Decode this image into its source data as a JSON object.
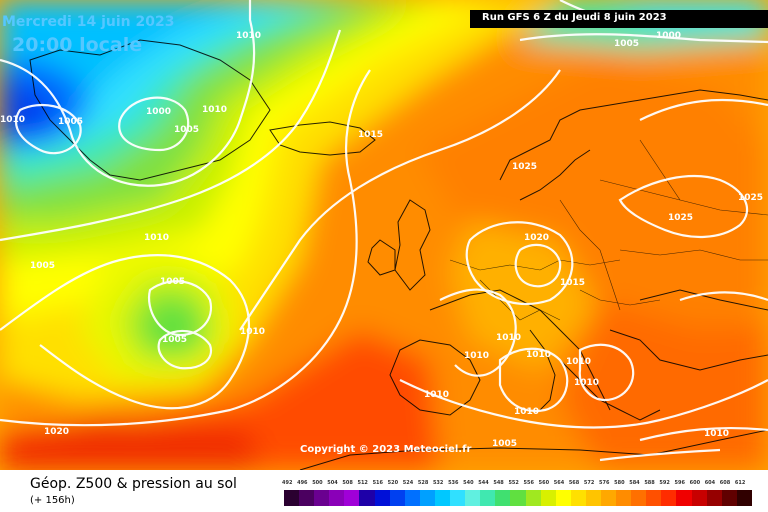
{
  "header": {
    "date_line": "Mercredi 14 juin 2023",
    "time_line": "20:00 locale",
    "run_label": "Run GFS 6 Z du Jeudi 8 juin 2023"
  },
  "copyright": "Copyright © 2023 Meteociel.fr",
  "footer": {
    "title": "Géop. Z500 & pression au sol",
    "subtitle": "(+ 156h)"
  },
  "isobar_labels": [
    {
      "text": "1010"
    },
    {
      "text": "1010"
    },
    {
      "text": "1005"
    },
    {
      "text": "1005"
    },
    {
      "text": "1000"
    },
    {
      "text": "1000"
    },
    {
      "text": "1010"
    },
    {
      "text": "1005"
    },
    {
      "text": "1015"
    },
    {
      "text": "1025"
    },
    {
      "text": "1010"
    },
    {
      "text": "1005"
    },
    {
      "text": "1005"
    },
    {
      "text": "1005"
    },
    {
      "text": "1010"
    },
    {
      "text": "1020"
    },
    {
      "text": "1015"
    },
    {
      "text": "1025"
    },
    {
      "text": "1025"
    },
    {
      "text": "1010"
    },
    {
      "text": "1010"
    },
    {
      "text": "1010"
    },
    {
      "text": "1010"
    },
    {
      "text": "1010"
    },
    {
      "text": "1010"
    },
    {
      "text": "1010"
    },
    {
      "text": "1005"
    },
    {
      "text": "1020"
    },
    {
      "text": "1010"
    }
  ],
  "color_scale": {
    "labels": [
      "492",
      "496",
      "500",
      "504",
      "508",
      "512",
      "516",
      "520",
      "524",
      "528",
      "532",
      "536",
      "540",
      "544",
      "548",
      "552",
      "556",
      "560",
      "564",
      "568",
      "572",
      "576",
      "580",
      "584",
      "588",
      "592",
      "596",
      "600",
      "604",
      "608",
      "612"
    ],
    "colors": [
      "#2a0030",
      "#4b0060",
      "#6a0090",
      "#8a00b8",
      "#a000d8",
      "#1e00a8",
      "#0010d8",
      "#0040f0",
      "#0070ff",
      "#00a0ff",
      "#00c8ff",
      "#30e0ff",
      "#60f0e0",
      "#40e8b0",
      "#40e070",
      "#60e040",
      "#a0e820",
      "#d8f000",
      "#ffff00",
      "#ffe000",
      "#ffc400",
      "#ffa800",
      "#ff8c00",
      "#ff7000",
      "#ff5000",
      "#ff2c00",
      "#f00000",
      "#c80000",
      "#960000",
      "#600000",
      "#300000"
    ]
  }
}
